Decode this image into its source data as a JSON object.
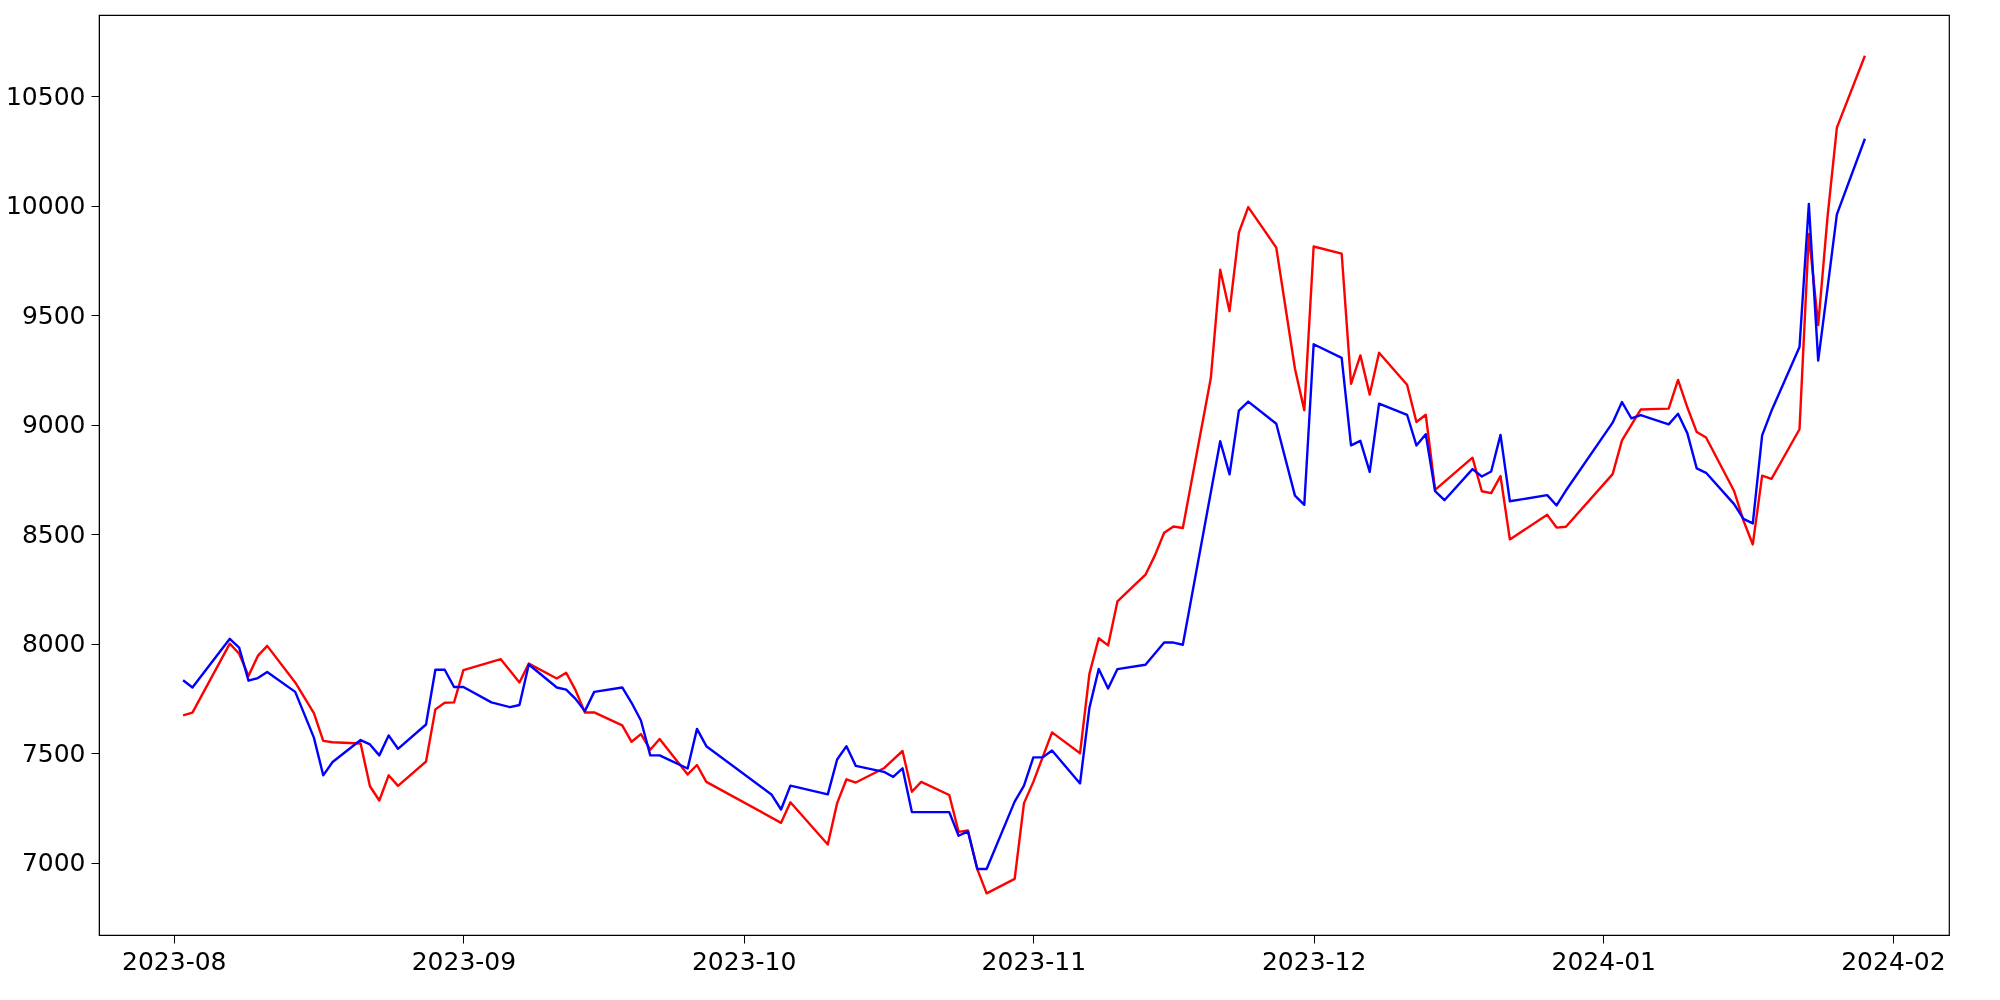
{
  "chart_data": {
    "type": "line",
    "xlim": [
      "2023-07-24",
      "2024-02-07"
    ],
    "xticks": [
      {
        "value": "2023-08-01",
        "label": "2023-08"
      },
      {
        "value": "2023-09-01",
        "label": "2023-09"
      },
      {
        "value": "2023-10-01",
        "label": "2023-10"
      },
      {
        "value": "2023-11-01",
        "label": "2023-11"
      },
      {
        "value": "2023-12-01",
        "label": "2023-12"
      },
      {
        "value": "2024-01-01",
        "label": "2024-01"
      },
      {
        "value": "2024-02-01",
        "label": "2024-02"
      }
    ],
    "ylim": [
      6670,
      10870
    ],
    "yticks": [
      7000,
      7500,
      8000,
      8500,
      9000,
      9500,
      10000,
      10500
    ],
    "grid": false,
    "legend": false,
    "marker": "none",
    "line_style": "solid",
    "series": [
      {
        "color": "#ff0000",
        "x": [
          "2023-08-02",
          "2023-08-03",
          "2023-08-07",
          "2023-08-08",
          "2023-08-09",
          "2023-08-10",
          "2023-08-11",
          "2023-08-14",
          "2023-08-16",
          "2023-08-17",
          "2023-08-18",
          "2023-08-21",
          "2023-08-22",
          "2023-08-23",
          "2023-08-24",
          "2023-08-25",
          "2023-08-28",
          "2023-08-29",
          "2023-08-30",
          "2023-08-31",
          "2023-09-01",
          "2023-09-05",
          "2023-09-07",
          "2023-09-08",
          "2023-09-11",
          "2023-09-12",
          "2023-09-13",
          "2023-09-14",
          "2023-09-15",
          "2023-09-18",
          "2023-09-19",
          "2023-09-20",
          "2023-09-21",
          "2023-09-22",
          "2023-09-25",
          "2023-09-26",
          "2023-09-27",
          "2023-10-05",
          "2023-10-06",
          "2023-10-10",
          "2023-10-11",
          "2023-10-12",
          "2023-10-13",
          "2023-10-16",
          "2023-10-17",
          "2023-10-18",
          "2023-10-19",
          "2023-10-20",
          "2023-10-23",
          "2023-10-24",
          "2023-10-25",
          "2023-10-26",
          "2023-10-27",
          "2023-10-30",
          "2023-10-31",
          "2023-11-01",
          "2023-11-03",
          "2023-11-06",
          "2023-11-07",
          "2023-11-08",
          "2023-11-09",
          "2023-11-10",
          "2023-11-13",
          "2023-11-14",
          "2023-11-15",
          "2023-11-16",
          "2023-11-17",
          "2023-11-20",
          "2023-11-21",
          "2023-11-22",
          "2023-11-23",
          "2023-11-24",
          "2023-11-27",
          "2023-11-29",
          "2023-11-30",
          "2023-12-01",
          "2023-12-04",
          "2023-12-05",
          "2023-12-06",
          "2023-12-07",
          "2023-12-08",
          "2023-12-11",
          "2023-12-12",
          "2023-12-13",
          "2023-12-14",
          "2023-12-18",
          "2023-12-19",
          "2023-12-20",
          "2023-12-21",
          "2023-12-22",
          "2023-12-26",
          "2023-12-27",
          "2023-12-28",
          "2024-01-02",
          "2024-01-03",
          "2024-01-05",
          "2024-01-08",
          "2024-01-09",
          "2024-01-10",
          "2024-01-11",
          "2024-01-12",
          "2024-01-15",
          "2024-01-16",
          "2024-01-17",
          "2024-01-18",
          "2024-01-19",
          "2024-01-22",
          "2024-01-23",
          "2024-01-24",
          "2024-01-25",
          "2024-01-26",
          "2024-01-29"
        ],
        "values": [
          7673,
          7685,
          8000,
          7954,
          7853,
          7944,
          7990,
          7823,
          7683,
          7556,
          7550,
          7544,
          7349,
          7284,
          7399,
          7351,
          7462,
          7700,
          7730,
          7732,
          7879,
          7929,
          7823,
          7909,
          7841,
          7867,
          7788,
          7686,
          7686,
          7627,
          7552,
          7587,
          7516,
          7565,
          7403,
          7446,
          7369,
          7182,
          7276,
          7083,
          7272,
          7381,
          7366,
          7431,
          7471,
          7510,
          7324,
          7369,
          7309,
          7141,
          7147,
          6971,
          6860,
          6926,
          7272,
          7369,
          7595,
          7500,
          7862,
          8025,
          7992,
          8193,
          8315,
          8402,
          8506,
          8535,
          8528,
          9214,
          9707,
          9518,
          9877,
          9993,
          9808,
          9255,
          9066,
          9813,
          9781,
          9186,
          9316,
          9137,
          9328,
          9182,
          9012,
          9045,
          8702,
          8849,
          8696,
          8687,
          8765,
          8476,
          8588,
          8530,
          8534,
          8774,
          8928,
          9069,
          9073,
          9204,
          9078,
          8966,
          8941,
          8697,
          8562,
          8453,
          8767,
          8752,
          8979,
          9870,
          9454,
          9948,
          10356,
          10684
        ]
      },
      {
        "color": "#0000ff",
        "x": [
          "2023-08-02",
          "2023-08-03",
          "2023-08-07",
          "2023-08-08",
          "2023-08-09",
          "2023-08-10",
          "2023-08-11",
          "2023-08-14",
          "2023-08-16",
          "2023-08-17",
          "2023-08-18",
          "2023-08-21",
          "2023-08-22",
          "2023-08-23",
          "2023-08-24",
          "2023-08-25",
          "2023-08-28",
          "2023-08-29",
          "2023-08-30",
          "2023-08-31",
          "2023-09-01",
          "2023-09-04",
          "2023-09-06",
          "2023-09-07",
          "2023-09-08",
          "2023-09-11",
          "2023-09-12",
          "2023-09-13",
          "2023-09-14",
          "2023-09-15",
          "2023-09-18",
          "2023-09-19",
          "2023-09-20",
          "2023-09-21",
          "2023-09-22",
          "2023-09-25",
          "2023-09-26",
          "2023-09-27",
          "2023-10-04",
          "2023-10-05",
          "2023-10-06",
          "2023-10-10",
          "2023-10-11",
          "2023-10-12",
          "2023-10-13",
          "2023-10-16",
          "2023-10-17",
          "2023-10-18",
          "2023-10-19",
          "2023-10-23",
          "2023-10-24",
          "2023-10-25",
          "2023-10-26",
          "2023-10-27",
          "2023-10-30",
          "2023-10-31",
          "2023-11-01",
          "2023-11-02",
          "2023-11-03",
          "2023-11-06",
          "2023-11-07",
          "2023-11-08",
          "2023-11-09",
          "2023-11-10",
          "2023-11-13",
          "2023-11-15",
          "2023-11-16",
          "2023-11-17",
          "2023-11-21",
          "2023-11-22",
          "2023-11-23",
          "2023-11-24",
          "2023-11-27",
          "2023-11-29",
          "2023-11-30",
          "2023-12-01",
          "2023-12-04",
          "2023-12-05",
          "2023-12-06",
          "2023-12-07",
          "2023-12-08",
          "2023-12-11",
          "2023-12-12",
          "2023-12-13",
          "2023-12-14",
          "2023-12-15",
          "2023-12-18",
          "2023-12-19",
          "2023-12-20",
          "2023-12-21",
          "2023-12-22",
          "2023-12-26",
          "2023-12-27",
          "2023-12-28",
          "2024-01-02",
          "2024-01-03",
          "2024-01-04",
          "2024-01-05",
          "2024-01-08",
          "2024-01-09",
          "2024-01-10",
          "2024-01-11",
          "2024-01-12",
          "2024-01-15",
          "2024-01-16",
          "2024-01-17",
          "2024-01-18",
          "2024-01-19",
          "2024-01-22",
          "2024-01-23",
          "2024-01-24",
          "2024-01-25",
          "2024-01-26",
          "2024-01-29"
        ],
        "values": [
          7833,
          7800,
          8022,
          7982,
          7831,
          7843,
          7871,
          7780,
          7571,
          7399,
          7460,
          7560,
          7540,
          7490,
          7581,
          7520,
          7631,
          7881,
          7881,
          7802,
          7802,
          7732,
          7710,
          7720,
          7905,
          7800,
          7790,
          7748,
          7692,
          7780,
          7800,
          7730,
          7649,
          7490,
          7490,
          7430,
          7611,
          7532,
          7310,
          7243,
          7352,
          7312,
          7471,
          7532,
          7442,
          7415,
          7392,
          7431,
          7231,
          7231,
          7123,
          7143,
          6971,
          6971,
          7279,
          7352,
          7481,
          7481,
          7512,
          7362,
          7707,
          7884,
          7795,
          7884,
          7904,
          8005,
          8005,
          7995,
          8924,
          8773,
          9064,
          9105,
          9004,
          8676,
          8634,
          9367,
          9305,
          8905,
          8926,
          8784,
          9096,
          9045,
          8905,
          8956,
          8696,
          8655,
          8797,
          8763,
          8786,
          8953,
          8650,
          8678,
          8631,
          8699,
          9009,
          9103,
          9029,
          9043,
          9001,
          9050,
          8960,
          8800,
          8780,
          8637,
          8570,
          8549,
          8951,
          9063,
          9354,
          10007,
          9292,
          9623,
          9960,
          10305
        ]
      }
    ]
  }
}
